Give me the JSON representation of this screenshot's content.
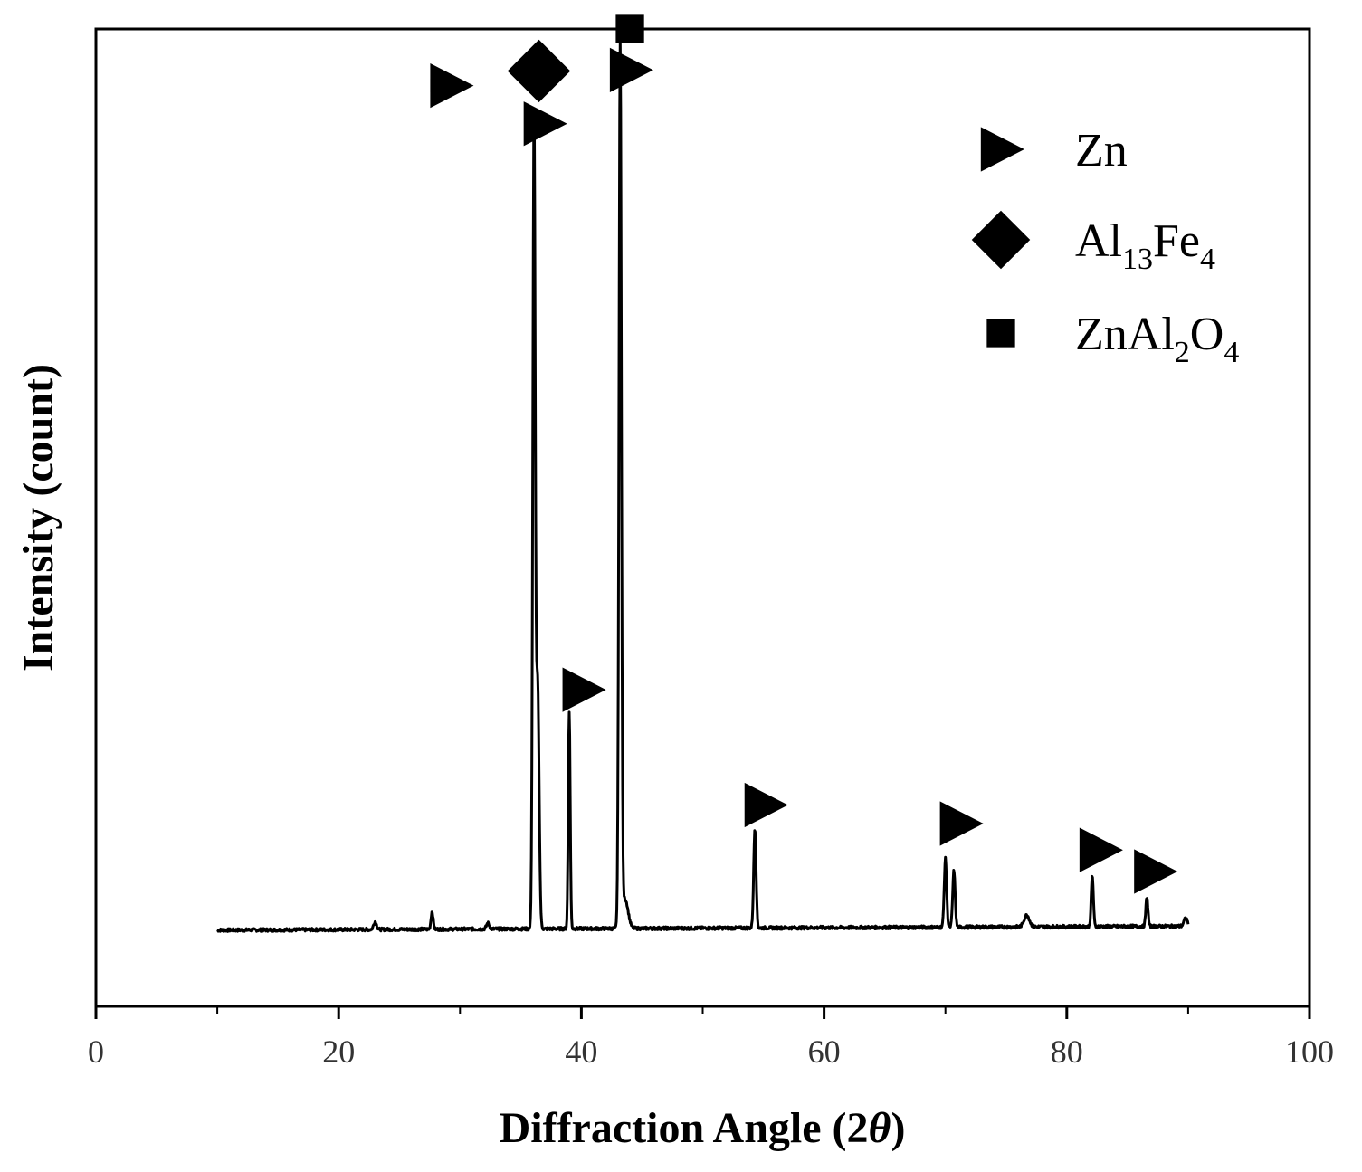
{
  "chart_data": {
    "type": "line",
    "title": "",
    "xlabel": "Diffraction Angle (2θ)",
    "xlabel_parts": {
      "main": "Diffraction Angle (2",
      "symbol": "θ",
      "close": ")"
    },
    "ylabel": "Intensity (count)",
    "xlim": [
      0,
      100
    ],
    "ylim": [
      0,
      1000
    ],
    "x_ticks": [
      0,
      20,
      40,
      60,
      80,
      100
    ],
    "x_tick_labels": [
      "0",
      "20",
      "40",
      "60",
      "80",
      "100"
    ],
    "y_ticks_shown": false,
    "grid": false,
    "legend_position": "top-right",
    "series": [
      {
        "range": [
          10,
          90
        ],
        "baseline": 78,
        "peaks": [
          {
            "x": 23.0,
            "h": 8,
            "w": 0.12
          },
          {
            "x": 27.7,
            "h": 18,
            "w": 0.09
          },
          {
            "x": 32.3,
            "h": 6,
            "w": 0.12
          },
          {
            "x": 36.1,
            "h": 836,
            "w": 0.1
          },
          {
            "x": 36.4,
            "h": 250,
            "w": 0.12
          },
          {
            "x": 39.0,
            "h": 223,
            "w": 0.08
          },
          {
            "x": 43.2,
            "h": 898,
            "w": 0.1
          },
          {
            "x": 43.6,
            "h": 30,
            "w": 0.25
          },
          {
            "x": 54.3,
            "h": 102,
            "w": 0.1
          },
          {
            "x": 70.0,
            "h": 70,
            "w": 0.1
          },
          {
            "x": 70.7,
            "h": 58,
            "w": 0.1
          },
          {
            "x": 76.7,
            "h": 12,
            "w": 0.22
          },
          {
            "x": 82.1,
            "h": 52,
            "w": 0.09
          },
          {
            "x": 86.6,
            "h": 30,
            "w": 0.09
          },
          {
            "x": 89.8,
            "h": 8,
            "w": 0.15
          }
        ]
      }
    ],
    "phases": [
      {
        "label": "Zn",
        "marker": "triangle-right",
        "sub_parts": []
      },
      {
        "label": "Al13Fe4",
        "marker": "diamond",
        "sub_parts": [
          [
            "Al",
            ""
          ],
          [
            "13",
            "sub"
          ],
          [
            "Fe",
            ""
          ],
          [
            "4",
            "sub"
          ]
        ]
      },
      {
        "label": "ZnAl2O4",
        "marker": "square",
        "sub_parts": [
          [
            "ZnAl",
            ""
          ],
          [
            "2",
            "sub"
          ],
          [
            "O",
            ""
          ],
          [
            "4",
            "sub"
          ]
        ]
      }
    ],
    "peak_markers": [
      {
        "x": 29.2,
        "y": 942,
        "marker": "triangle-right"
      },
      {
        "x": 36.9,
        "y": 903,
        "marker": "triangle-right"
      },
      {
        "x": 36.5,
        "y": 957,
        "marker": "diamond"
      },
      {
        "x": 44.0,
        "y": 958,
        "marker": "triangle-right"
      },
      {
        "x": 44.0,
        "y": 1000,
        "marker": "square"
      },
      {
        "x": 40.1,
        "y": 324,
        "marker": "triangle-right"
      },
      {
        "x": 55.1,
        "y": 206,
        "marker": "triangle-right"
      },
      {
        "x": 71.2,
        "y": 187,
        "marker": "triangle-right"
      },
      {
        "x": 82.7,
        "y": 160,
        "marker": "triangle-right"
      },
      {
        "x": 87.2,
        "y": 138,
        "marker": "triangle-right"
      }
    ]
  }
}
